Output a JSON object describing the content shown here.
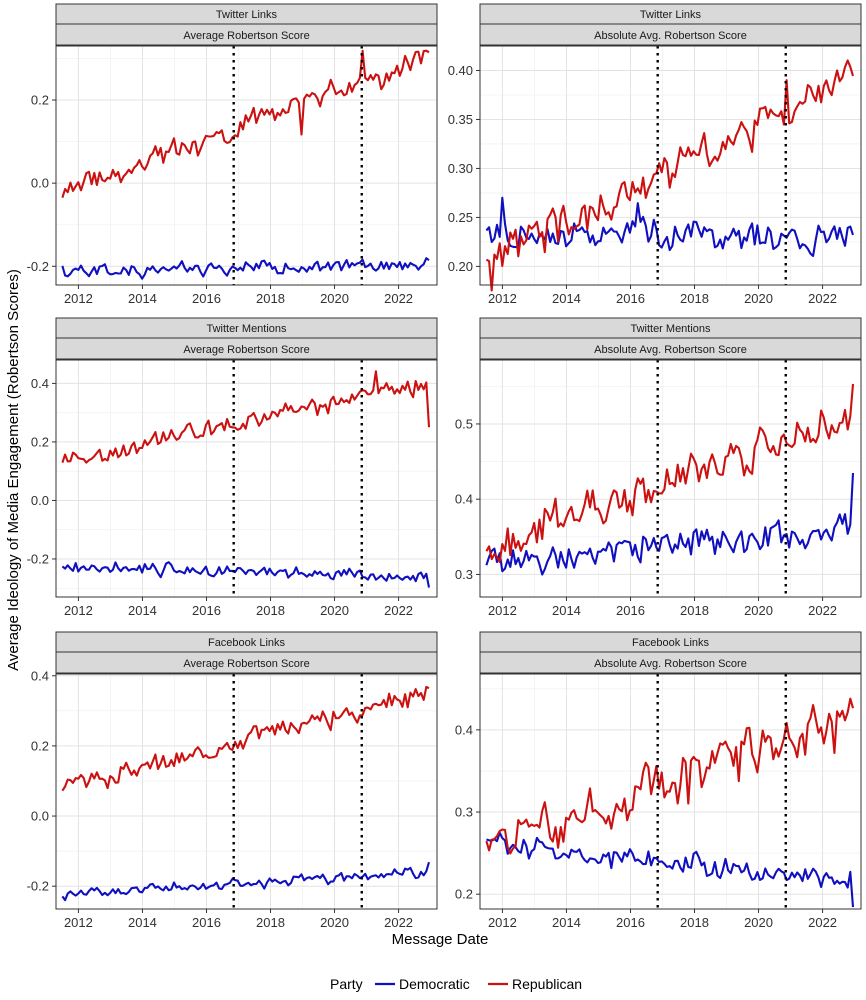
{
  "colors": {
    "Democratic": "#1010c0",
    "Republican": "#cc1111"
  },
  "legend": {
    "title": "Party",
    "entries": [
      {
        "label": "Democratic",
        "color": "#1010c0"
      },
      {
        "label": "Republican",
        "color": "#cc1111"
      }
    ]
  },
  "x_axis_title": "Message Date",
  "y_axis_title": "Average Ideology of Media Engagement (Robertson Scores)",
  "chart_data": [
    {
      "type": "line",
      "row": 0,
      "col": 0,
      "facet_top": "Twitter Links",
      "facet_bottom": "Average Robertson Score",
      "xlim": [
        2011.3,
        2023.2
      ],
      "ylim": [
        -0.245,
        0.33
      ],
      "xticks": [
        2012,
        2014,
        2016,
        2018,
        2020,
        2022
      ],
      "yticks": [
        -0.2,
        0.0,
        0.2
      ],
      "ytick_labels": [
        "-0.2",
        "0.0",
        "0.2"
      ],
      "vlines": [
        2016.85,
        2020.85
      ],
      "series": [
        {
          "name": "Democratic",
          "start": -0.215,
          "end": -0.195,
          "noise": 0.012,
          "seed": 11,
          "dips": []
        },
        {
          "name": "Republican",
          "start": -0.02,
          "end": 0.3,
          "noise": 0.022,
          "seed": 12,
          "dips": [
            [
              2019.0,
              -0.07
            ],
            [
              2020.9,
              0.06
            ]
          ]
        }
      ]
    },
    {
      "type": "line",
      "row": 0,
      "col": 1,
      "facet_top": "Twitter Links",
      "facet_bottom": "Absolute Avg. Robertson Score",
      "xlim": [
        2011.3,
        2023.2
      ],
      "ylim": [
        0.181,
        0.425
      ],
      "xticks": [
        2012,
        2014,
        2016,
        2018,
        2020,
        2022
      ],
      "yticks": [
        0.2,
        0.25,
        0.3,
        0.35,
        0.4
      ],
      "ytick_labels": [
        "0.20",
        "0.25",
        "0.30",
        "0.35",
        "0.40"
      ],
      "vlines": [
        2016.85,
        2020.85
      ],
      "series": [
        {
          "name": "Democratic",
          "start": 0.235,
          "end": 0.228,
          "noise": 0.011,
          "seed": 21,
          "dips": [
            [
              2012.0,
              0.03
            ],
            [
              2016.2,
              0.02
            ]
          ]
        },
        {
          "name": "Republican",
          "start": 0.205,
          "end": 0.39,
          "noise": 0.014,
          "seed": 22,
          "dips": [
            [
              2011.7,
              -0.02
            ],
            [
              2020.9,
              0.04
            ]
          ]
        }
      ]
    },
    {
      "type": "line",
      "row": 1,
      "col": 0,
      "facet_top": "Twitter Mentions",
      "facet_bottom": "Average Robertson Score",
      "xlim": [
        2011.3,
        2023.2
      ],
      "ylim": [
        -0.33,
        0.48
      ],
      "xticks": [
        2012,
        2014,
        2016,
        2018,
        2020,
        2022
      ],
      "yticks": [
        -0.2,
        0.0,
        0.2,
        0.4
      ],
      "ytick_labels": [
        "-0.2",
        "0.0",
        "0.2",
        "0.4"
      ],
      "vlines": [
        2016.85,
        2020.85
      ],
      "series": [
        {
          "name": "Democratic",
          "start": -0.225,
          "end": -0.26,
          "noise": 0.016,
          "seed": 31,
          "dips": [
            [
              2022.95,
              -0.05
            ]
          ]
        },
        {
          "name": "Republican",
          "start": 0.13,
          "end": 0.4,
          "noise": 0.025,
          "seed": 32,
          "dips": [
            [
              2021.3,
              0.07
            ],
            [
              2022.95,
              -0.14
            ]
          ]
        }
      ]
    },
    {
      "type": "line",
      "row": 1,
      "col": 1,
      "facet_top": "Twitter Mentions",
      "facet_bottom": "Absolute Avg. Robertson Score",
      "xlim": [
        2011.3,
        2023.2
      ],
      "ylim": [
        0.27,
        0.585
      ],
      "xticks": [
        2012,
        2014,
        2016,
        2018,
        2020,
        2022
      ],
      "yticks": [
        0.3,
        0.4,
        0.5
      ],
      "ytick_labels": [
        "0.3",
        "0.4",
        "0.5"
      ],
      "vlines": [
        2016.85,
        2020.85
      ],
      "series": [
        {
          "name": "Democratic",
          "start": 0.315,
          "end": 0.36,
          "noise": 0.014,
          "seed": 41,
          "dips": [
            [
              2022.5,
              0.02
            ],
            [
              2022.95,
              0.07
            ]
          ]
        },
        {
          "name": "Republican",
          "start": 0.335,
          "end": 0.51,
          "noise": 0.02,
          "seed": 42,
          "dips": [
            [
              2022.95,
              0.06
            ]
          ]
        }
      ]
    },
    {
      "type": "line",
      "row": 2,
      "col": 0,
      "facet_top": "Facebook Links",
      "facet_bottom": "Average Robertson Score",
      "xlim": [
        2011.3,
        2023.2
      ],
      "ylim": [
        -0.265,
        0.405
      ],
      "xticks": [
        2012,
        2014,
        2016,
        2018,
        2020,
        2022
      ],
      "yticks": [
        -0.2,
        0.0,
        0.2,
        0.4
      ],
      "ytick_labels": [
        "-0.2",
        "0.0",
        "0.2",
        "0.4"
      ],
      "vlines": [
        2016.85,
        2020.85
      ],
      "series": [
        {
          "name": "Democratic",
          "start": -0.225,
          "end": -0.16,
          "noise": 0.011,
          "seed": 51,
          "dips": [
            [
              2022.95,
              0.03
            ]
          ]
        },
        {
          "name": "Republican",
          "start": 0.08,
          "end": 0.35,
          "noise": 0.02,
          "seed": 52,
          "dips": []
        }
      ]
    },
    {
      "type": "line",
      "row": 2,
      "col": 1,
      "facet_top": "Facebook Links",
      "facet_bottom": "Absolute Avg. Robertson Score",
      "xlim": [
        2011.3,
        2023.2
      ],
      "ylim": [
        0.182,
        0.468
      ],
      "xticks": [
        2012,
        2014,
        2016,
        2018,
        2020,
        2022
      ],
      "yticks": [
        0.2,
        0.3,
        0.4
      ],
      "ytick_labels": [
        "0.2",
        "0.3",
        "0.4"
      ],
      "vlines": [
        2016.85,
        2020.85
      ],
      "series": [
        {
          "name": "Democratic",
          "start": 0.262,
          "end": 0.215,
          "noise": 0.01,
          "seed": 61,
          "dips": [
            [
              2022.95,
              -0.025
            ]
          ]
        },
        {
          "name": "Republican",
          "start": 0.255,
          "end": 0.42,
          "noise": 0.022,
          "seed": 62,
          "dips": [
            [
              2017.8,
              -0.05
            ],
            [
              2019.4,
              -0.04
            ],
            [
              2022.4,
              -0.03
            ]
          ]
        }
      ]
    }
  ]
}
